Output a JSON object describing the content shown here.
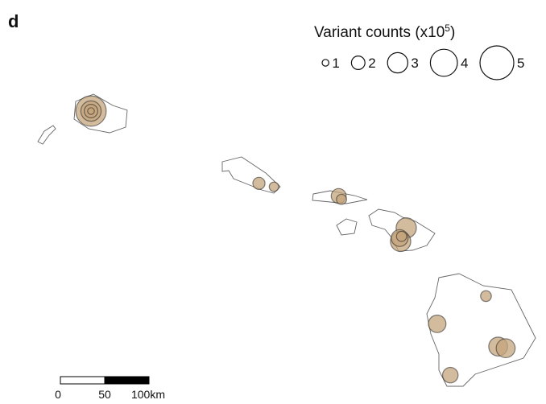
{
  "panel_label": "d",
  "legend": {
    "title": "Variant counts (x10",
    "title_superscript": "5",
    "title_end": ")",
    "sizes": [
      1,
      2,
      3,
      4,
      5
    ]
  },
  "scale_bar": {
    "labels": [
      "0",
      "50",
      "100km"
    ]
  },
  "points": [
    {
      "lon": -159.5,
      "lat": 22.05,
      "count": 4.5
    },
    {
      "lon": -159.5,
      "lat": 22.05,
      "count": 3
    },
    {
      "lon": -159.5,
      "lat": 22.05,
      "count": 2
    },
    {
      "lon": -159.5,
      "lat": 22.05,
      "count": 1
    },
    {
      "lon": -157.71,
      "lat": 21.19,
      "count": 1.8
    },
    {
      "lon": -157.55,
      "lat": 21.15,
      "count": 1.4
    },
    {
      "lon": -156.86,
      "lat": 21.04,
      "count": 2.2
    },
    {
      "lon": -156.83,
      "lat": 21.0,
      "count": 1.5
    },
    {
      "lon": -156.14,
      "lat": 20.66,
      "count": 3
    },
    {
      "lon": -156.2,
      "lat": 20.5,
      "count": 3
    },
    {
      "lon": -156.21,
      "lat": 20.54,
      "count": 2.5
    },
    {
      "lon": -156.19,
      "lat": 20.56,
      "count": 1.5
    },
    {
      "lon": -155.29,
      "lat": 19.85,
      "count": 1.6
    },
    {
      "lon": -155.81,
      "lat": 19.52,
      "count": 2.6
    },
    {
      "lon": -155.16,
      "lat": 19.25,
      "count": 2.8
    },
    {
      "lon": -155.08,
      "lat": 19.23,
      "count": 2.8
    },
    {
      "lon": -155.67,
      "lat": 18.91,
      "count": 2.3
    }
  ]
}
